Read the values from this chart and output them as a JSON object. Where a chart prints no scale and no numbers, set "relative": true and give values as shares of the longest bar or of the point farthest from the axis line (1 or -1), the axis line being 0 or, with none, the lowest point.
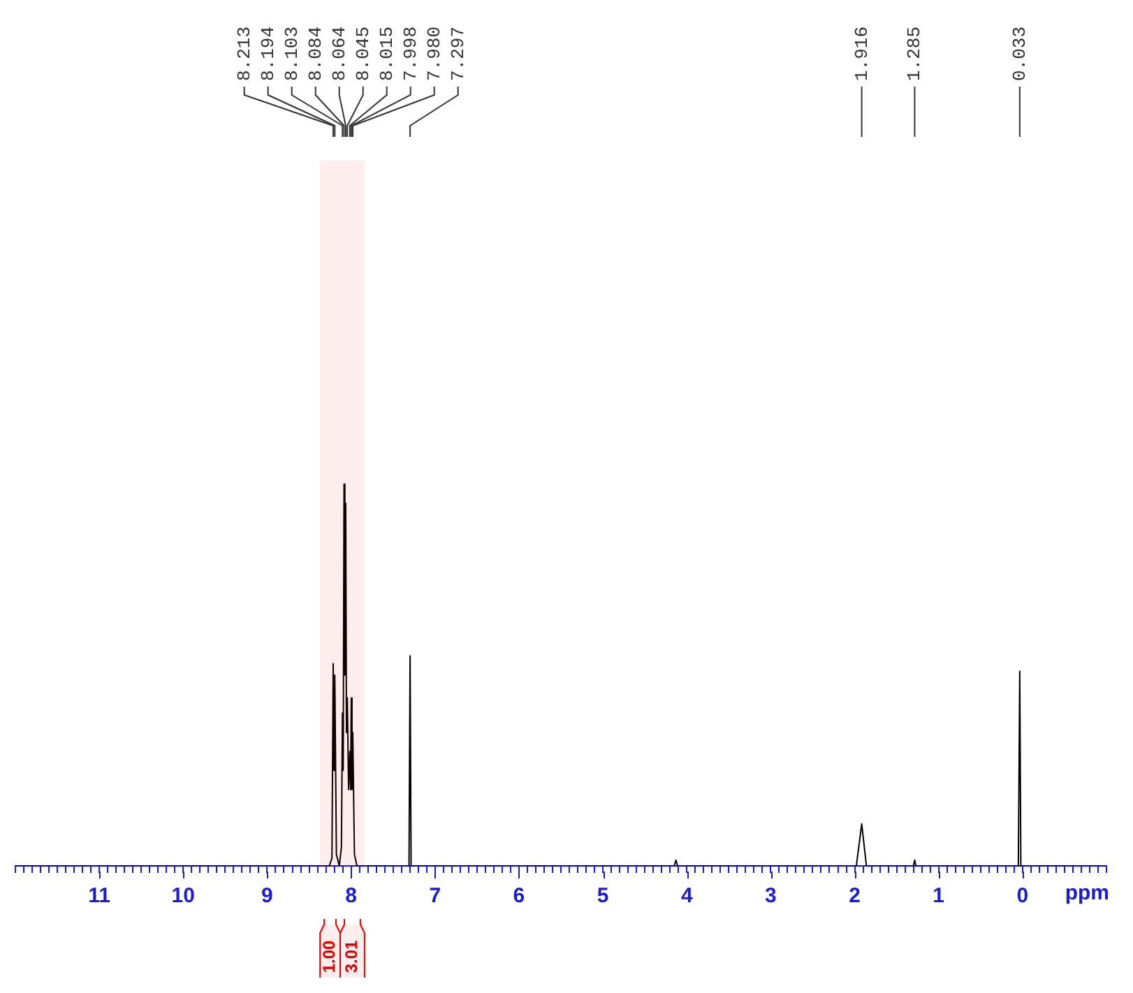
{
  "chart_data": {
    "type": "line",
    "relative": true,
    "xlabel": "ppm",
    "color": "#000000",
    "marker": "none",
    "line_style": "solid",
    "xlim": [
      12,
      -1
    ],
    "xticks": [
      {
        "value": 12,
        "label": null
      },
      {
        "value": 11.9,
        "label": null
      },
      {
        "value": 11.8,
        "label": null
      },
      {
        "value": 11.7,
        "label": null
      },
      {
        "value": 11.6,
        "label": null
      },
      {
        "value": 11.5,
        "label": null
      },
      {
        "value": 11.4,
        "label": null
      },
      {
        "value": 11.3,
        "label": null
      },
      {
        "value": 11.2,
        "label": null
      },
      {
        "value": 11.1,
        "label": null
      },
      11,
      {
        "value": 10.9,
        "label": null
      },
      {
        "value": 10.8,
        "label": null
      },
      {
        "value": 10.7,
        "label": null
      },
      {
        "value": 10.6,
        "label": null
      },
      {
        "value": 10.5,
        "label": null
      },
      {
        "value": 10.4,
        "label": null
      },
      {
        "value": 10.3,
        "label": null
      },
      {
        "value": 10.2,
        "label": null
      },
      {
        "value": 10.1,
        "label": null
      },
      10,
      {
        "value": 9.9,
        "label": null
      },
      {
        "value": 9.8,
        "label": null
      },
      {
        "value": 9.7,
        "label": null
      },
      {
        "value": 9.6,
        "label": null
      },
      {
        "value": 9.5,
        "label": null
      },
      {
        "value": 9.4,
        "label": null
      },
      {
        "value": 9.3,
        "label": null
      },
      {
        "value": 9.2,
        "label": null
      },
      {
        "value": 9.1,
        "label": null
      },
      9,
      {
        "value": 8.9,
        "label": null
      },
      {
        "value": 8.8,
        "label": null
      },
      {
        "value": 8.7,
        "label": null
      },
      {
        "value": 8.6,
        "label": null
      },
      {
        "value": 8.5,
        "label": null
      },
      {
        "value": 8.4,
        "label": null
      },
      {
        "value": 8.3,
        "label": null
      },
      {
        "value": 8.2,
        "label": null
      },
      {
        "value": 8.1,
        "label": null
      },
      8,
      {
        "value": 7.9,
        "label": null
      },
      {
        "value": 7.8,
        "label": null
      },
      {
        "value": 7.7,
        "label": null
      },
      {
        "value": 7.6,
        "label": null
      },
      {
        "value": 7.5,
        "label": null
      },
      {
        "value": 7.4,
        "label": null
      },
      {
        "value": 7.3,
        "label": null
      },
      {
        "value": 7.2,
        "label": null
      },
      {
        "value": 7.1,
        "label": null
      },
      7,
      {
        "value": 6.9,
        "label": null
      },
      {
        "value": 6.8,
        "label": null
      },
      {
        "value": 6.7,
        "label": null
      },
      {
        "value": 6.6,
        "label": null
      },
      {
        "value": 6.5,
        "label": null
      },
      {
        "value": 6.4,
        "label": null
      },
      {
        "value": 6.3,
        "label": null
      },
      {
        "value": 6.2,
        "label": null
      },
      {
        "value": 6.1,
        "label": null
      },
      6,
      {
        "value": 5.9,
        "label": null
      },
      {
        "value": 5.8,
        "label": null
      },
      {
        "value": 5.7,
        "label": null
      },
      {
        "value": 5.6,
        "label": null
      },
      {
        "value": 5.5,
        "label": null
      },
      {
        "value": 5.4,
        "label": null
      },
      {
        "value": 5.3,
        "label": null
      },
      {
        "value": 5.2,
        "label": null
      },
      {
        "value": 5.1,
        "label": null
      },
      5,
      {
        "value": 4.9,
        "label": null
      },
      {
        "value": 4.8,
        "label": null
      },
      {
        "value": 4.7,
        "label": null
      },
      {
        "value": 4.6,
        "label": null
      },
      {
        "value": 4.5,
        "label": null
      },
      {
        "value": 4.4,
        "label": null
      },
      {
        "value": 4.3,
        "label": null
      },
      {
        "value": 4.2,
        "label": null
      },
      {
        "value": 4.1,
        "label": null
      },
      4,
      {
        "value": 3.9,
        "label": null
      },
      {
        "value": 3.8,
        "label": null
      },
      {
        "value": 3.7,
        "label": null
      },
      {
        "value": 3.6,
        "label": null
      },
      {
        "value": 3.5,
        "label": null
      },
      {
        "value": 3.4,
        "label": null
      },
      {
        "value": 3.3,
        "label": null
      },
      {
        "value": 3.2,
        "label": null
      },
      {
        "value": 3.1,
        "label": null
      },
      3,
      {
        "value": 2.9,
        "label": null
      },
      {
        "value": 2.8,
        "label": null
      },
      {
        "value": 2.7,
        "label": null
      },
      {
        "value": 2.6,
        "label": null
      },
      {
        "value": 2.5,
        "label": null
      },
      {
        "value": 2.4,
        "label": null
      },
      {
        "value": 2.3,
        "label": null
      },
      {
        "value": 2.2,
        "label": null
      },
      {
        "value": 2.1,
        "label": null
      },
      2,
      {
        "value": 1.9,
        "label": null
      },
      {
        "value": 1.8,
        "label": null
      },
      {
        "value": 1.7,
        "label": null
      },
      {
        "value": 1.6,
        "label": null
      },
      {
        "value": 1.5,
        "label": null
      },
      {
        "value": 1.4,
        "label": null
      },
      {
        "value": 1.3,
        "label": null
      },
      {
        "value": 1.2,
        "label": null
      },
      {
        "value": 1.1,
        "label": null
      },
      1,
      {
        "value": 0.9,
        "label": null
      },
      {
        "value": 0.8,
        "label": null
      },
      {
        "value": 0.7,
        "label": null
      },
      {
        "value": 0.6,
        "label": null
      },
      {
        "value": 0.5,
        "label": null
      },
      {
        "value": 0.4,
        "label": null
      },
      {
        "value": 0.3,
        "label": null
      },
      {
        "value": 0.2,
        "label": null
      },
      {
        "value": 0.1,
        "label": null
      },
      0,
      {
        "value": -0.1,
        "label": null
      },
      {
        "value": -0.2,
        "label": null
      },
      {
        "value": -0.3,
        "label": null
      },
      {
        "value": -0.4,
        "label": null
      },
      {
        "value": -0.5,
        "label": null
      },
      {
        "value": -0.6,
        "label": null
      },
      {
        "value": -0.7,
        "label": null
      },
      {
        "value": -0.8,
        "label": null
      },
      {
        "value": -0.9,
        "label": null
      },
      {
        "value": -1,
        "label": null
      }
    ],
    "x": [
      12,
      8.26,
      8.228,
      8.213,
      8.204,
      8.194,
      8.175,
      8.14,
      8.115,
      8.103,
      8.094,
      8.084,
      8.074,
      8.064,
      8.055,
      8.045,
      8.03,
      8.015,
      8.006,
      7.998,
      7.989,
      7.98,
      7.96,
      7.93,
      7.31,
      7.297,
      7.285,
      4.15,
      4.13,
      4.11,
      1.98,
      1.916,
      1.86,
      1.3,
      1.285,
      1.27,
      0.05,
      0.033,
      0.02,
      -1
    ],
    "values": [
      0,
      0,
      0.02,
      0.53,
      0.25,
      0.5,
      0.03,
      0,
      0.05,
      0.4,
      0.25,
      1,
      0.5,
      0.95,
      0.35,
      0.44,
      0.2,
      0.3,
      0.2,
      0.44,
      0.2,
      0.35,
      0.03,
      0,
      0,
      0.55,
      0,
      0,
      0.015,
      0,
      0,
      0.11,
      0,
      0,
      0.015,
      0,
      0,
      0.51,
      0,
      0
    ],
    "annotations": [
      {
        "text": "8.213",
        "x": 8.213
      },
      {
        "text": "8.194",
        "x": 8.194
      },
      {
        "text": "8.103",
        "x": 8.103
      },
      {
        "text": "8.084",
        "x": 8.084
      },
      {
        "text": "8.064",
        "x": 8.064
      },
      {
        "text": "8.045",
        "x": 8.045
      },
      {
        "text": "8.015",
        "x": 8.015
      },
      {
        "text": "7.998",
        "x": 7.998
      },
      {
        "text": "7.980",
        "x": 7.98
      },
      {
        "text": "7.297",
        "x": 7.297
      },
      {
        "text": "1.916",
        "x": 1.916
      },
      {
        "text": "1.285",
        "x": 1.285
      },
      {
        "text": "0.033",
        "x": 0.033
      }
    ],
    "bands": [
      {
        "axis": "x",
        "from": 8.37,
        "to": 8.13,
        "label": "1.00",
        "color": "#e00000"
      },
      {
        "axis": "x",
        "from": 8.13,
        "to": 7.84,
        "label": "3.01",
        "color": "#e00000"
      }
    ]
  }
}
